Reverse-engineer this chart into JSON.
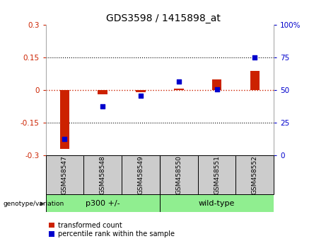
{
  "title": "GDS3598 / 1415898_at",
  "samples": [
    "GSM458547",
    "GSM458548",
    "GSM458549",
    "GSM458550",
    "GSM458551",
    "GSM458552"
  ],
  "red_values": [
    -0.27,
    -0.018,
    -0.008,
    0.008,
    0.05,
    0.09
  ],
  "blue_values": [
    13,
    38,
    46,
    57,
    51,
    75
  ],
  "ylim_left": [
    -0.3,
    0.3
  ],
  "ylim_right": [
    0,
    100
  ],
  "yticks_left": [
    -0.3,
    -0.15,
    0,
    0.15,
    0.3
  ],
  "yticks_right": [
    0,
    25,
    50,
    75,
    100
  ],
  "group_boundary": 2.5,
  "bar_color": "#cc2200",
  "dot_color": "#0000cc",
  "plot_bg_color": "#ffffff",
  "sample_box_color": "#cccccc",
  "group_box_color": "#90EE90",
  "legend_red_label": "transformed count",
  "legend_blue_label": "percentile rank within the sample",
  "genotype_label": "genotype/variation",
  "left_axis_color": "#cc2200",
  "right_axis_color": "#0000cc",
  "bar_width": 0.25
}
